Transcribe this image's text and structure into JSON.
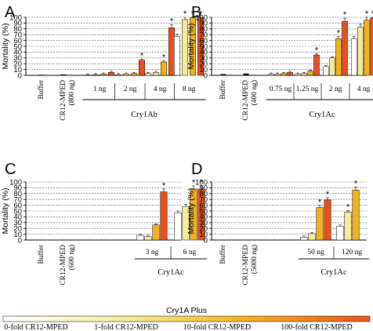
{
  "legend": {
    "title": "Cry1A Plus",
    "items": [
      {
        "label": "0-fold CR12-MPED",
        "color": "#ffffff"
      },
      {
        "label": "1-fold CR12-MPED",
        "color": "#f4ec9a"
      },
      {
        "label": "10-fold CR12-MPED",
        "color": "#f2b21a"
      },
      {
        "label": "100-fold CR12-MPED",
        "color": "#e8501f"
      }
    ]
  },
  "chart_data": [
    {
      "panel": "A",
      "type": "bar",
      "ylabel": "Mortality (%)",
      "ylim": [
        0,
        100
      ],
      "yticks": [
        0,
        10,
        20,
        30,
        40,
        50,
        60,
        70,
        80,
        90,
        100
      ],
      "controls": [
        {
          "label": "Buffer",
          "value": 1,
          "color": "#000000"
        },
        {
          "label": "CR12-MPED (800 ng)",
          "value": 1.5,
          "color": "#000000"
        }
      ],
      "group_label": "Cry1Ab",
      "groups": [
        {
          "label": "1 ng",
          "values": [
            0.5,
            1,
            2,
            5
          ],
          "stars": [
            false,
            false,
            false,
            false
          ]
        },
        {
          "label": "2 ng",
          "values": [
            1,
            2,
            3,
            26
          ],
          "stars": [
            false,
            false,
            false,
            true
          ]
        },
        {
          "label": "4 ng",
          "values": [
            3,
            5,
            23,
            82
          ],
          "stars": [
            false,
            false,
            true,
            true
          ]
        },
        {
          "label": "8 ng",
          "values": [
            67,
            96,
            99,
            99
          ],
          "stars": [
            false,
            true,
            true,
            true
          ]
        }
      ]
    },
    {
      "panel": "B",
      "type": "bar",
      "ylabel": "Mortality (%)",
      "ylim": [
        0,
        100
      ],
      "yticks": [
        0,
        10,
        20,
        30,
        40,
        50,
        60,
        70,
        80,
        90,
        100
      ],
      "controls": [
        {
          "label": "Buffer",
          "value": 2,
          "color": "#000000"
        },
        {
          "label": "CR12-MPED (400 ng)",
          "value": 3,
          "color": "#000000"
        }
      ],
      "group_label": "Cry1Ac",
      "groups": [
        {
          "label": "0.75 ng",
          "values": [
            2,
            2,
            3,
            5
          ],
          "stars": [
            false,
            false,
            false,
            false
          ]
        },
        {
          "label": "1.25 ng",
          "values": [
            2,
            3,
            7,
            35
          ],
          "stars": [
            false,
            false,
            false,
            true
          ]
        },
        {
          "label": "2 ng",
          "values": [
            15,
            30,
            63,
            93
          ],
          "stars": [
            false,
            false,
            true,
            true
          ]
        },
        {
          "label": "4 ng",
          "values": [
            63,
            83,
            95,
            99
          ],
          "stars": [
            false,
            false,
            true,
            true
          ]
        }
      ]
    },
    {
      "panel": "C",
      "type": "bar",
      "ylabel": "Mortality (%)",
      "ylim": [
        0,
        100
      ],
      "yticks": [
        0,
        10,
        20,
        30,
        40,
        50,
        60,
        70,
        80,
        90,
        100
      ],
      "controls": [
        {
          "label": "Buffer",
          "value": 0,
          "color": "#000000"
        },
        {
          "label": "CR12-MPED (600 ng)",
          "value": 0,
          "color": "#000000"
        }
      ],
      "group_label": "Cry1Ac",
      "groups": [
        {
          "label": "3 ng",
          "values": [
            8,
            6,
            26,
            83
          ],
          "stars": [
            false,
            false,
            false,
            true
          ]
        },
        {
          "label": "6 ng",
          "values": [
            47,
            58,
            88,
            88
          ],
          "stars": [
            false,
            false,
            true,
            true
          ]
        }
      ]
    },
    {
      "panel": "D",
      "type": "bar",
      "ylabel": "Mortality (%)",
      "ylim": [
        0,
        100
      ],
      "yticks": [
        0,
        10,
        20,
        30,
        40,
        50,
        60,
        70,
        80,
        90,
        100
      ],
      "controls": [
        {
          "label": "Buffer",
          "value": 0,
          "color": "#000000"
        },
        {
          "label": "CR12-MPED (5000 ng)",
          "value": 0,
          "color": "#000000"
        }
      ],
      "group_label": "Cry1Ac",
      "groups": [
        {
          "label": "50 ng",
          "values": [
            5,
            11,
            56,
            69
          ],
          "stars": [
            false,
            false,
            true,
            true
          ]
        },
        {
          "label": "120 ng",
          "values": [
            24,
            48,
            86,
            null
          ],
          "stars": [
            false,
            true,
            true,
            false
          ]
        }
      ]
    }
  ]
}
